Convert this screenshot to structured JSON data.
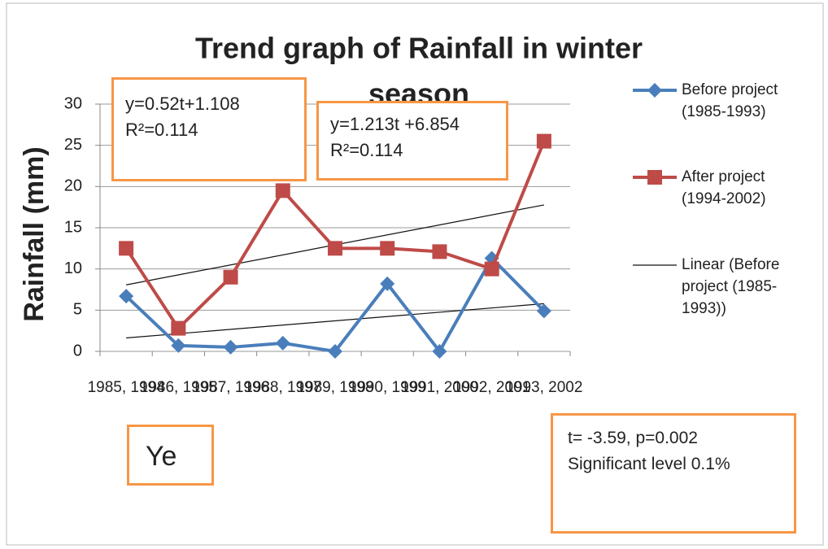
{
  "chart_data": {
    "type": "line",
    "title": "Trend graph of Rainfall in winter season",
    "y_label": "Rainfall (mm)",
    "categories": [
      "1985, 1994",
      "1986, 1995",
      "1987, 1996",
      "1988, 1997",
      "1989, 1998",
      "1990, 1999",
      "1991, 2000",
      "1992, 2001",
      "1993, 2002"
    ],
    "series": [
      {
        "name": "Before project (1985-1993)",
        "color": "#4a7ebb",
        "marker": "diamond",
        "values": [
          6.7,
          0.7,
          0.5,
          1.0,
          0,
          8.2,
          0,
          11.3,
          4.9
        ]
      },
      {
        "name": "After project (1994-2002)",
        "color": "#be4b48",
        "marker": "square",
        "values": [
          12.5,
          2.8,
          9.0,
          19.5,
          12.5,
          12.5,
          12.1,
          10.0,
          25.5
        ]
      }
    ],
    "trend_legend": "Linear (Before project (1985-1993))",
    "trendlines": [
      {
        "slope": 0.52,
        "intercept": 1.108,
        "equation": "y=0.52t+1.108",
        "r2": "R²=0.114"
      },
      {
        "slope": 1.213,
        "intercept": 6.854,
        "equation": "y=1.213t +6.854",
        "r2": "R²=0.114"
      }
    ],
    "ylim": [
      0,
      30
    ],
    "yticks": [
      0,
      5,
      10,
      15,
      20,
      25,
      30
    ],
    "grid": true,
    "annotations": {
      "note": "Ye",
      "stat": "t= -3.59, p=0.002",
      "significance": "Significant level  0.1%"
    }
  }
}
